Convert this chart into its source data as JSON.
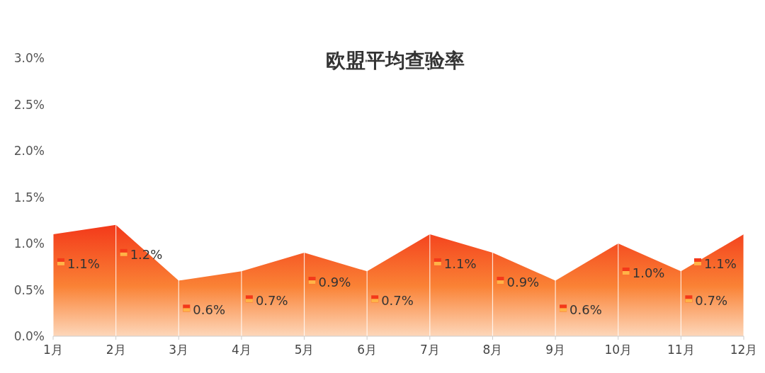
{
  "chart_data": {
    "type": "area",
    "title": "欧盟平均查验率",
    "categories": [
      "1月",
      "2月",
      "3月",
      "4月",
      "5月",
      "6月",
      "7月",
      "8月",
      "9月",
      "10月",
      "11月",
      "12月"
    ],
    "series": [
      {
        "color": "#f3391a",
        "values": [
          1.1,
          1.2,
          0.6,
          0.7,
          0.9,
          0.7,
          1.1,
          0.9,
          0.6,
          1.0,
          0.7,
          1.1
        ],
        "value_labels": [
          "1.1%",
          "1.2%",
          "0.6%",
          "0.7%",
          "0.9%",
          "0.7%",
          "1.1%",
          "0.9%",
          "0.6%",
          "1.0%",
          "0.7%",
          "1.1%"
        ]
      }
    ],
    "ylim": [
      0,
      3
    ],
    "yticks": [
      {
        "value": 0,
        "label": "0.0%"
      },
      {
        "value": 0.5,
        "label": "0.5%"
      },
      {
        "value": 1,
        "label": "1.0%"
      },
      {
        "value": 1.5,
        "label": "1.5%"
      },
      {
        "value": 2,
        "label": "2.0%"
      },
      {
        "value": 2.5,
        "label": "2.5%"
      },
      {
        "value": 3,
        "label": "3.0%"
      }
    ],
    "grid": "x"
  }
}
